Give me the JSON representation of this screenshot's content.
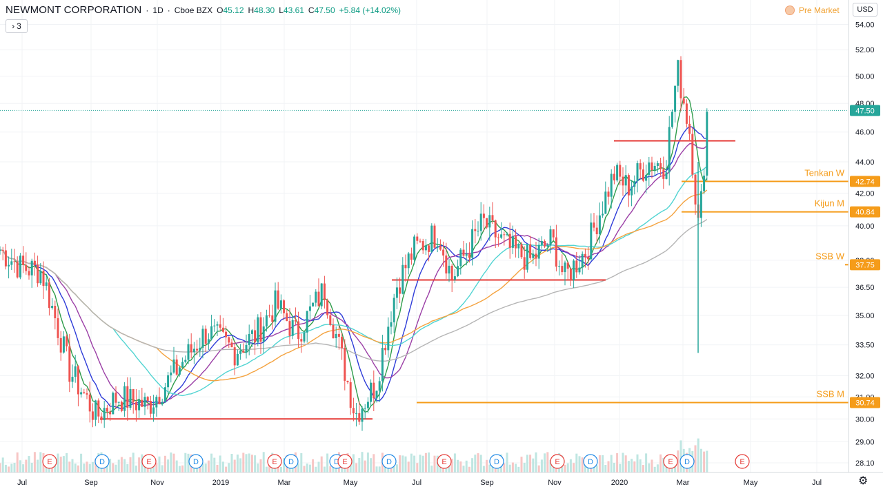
{
  "header": {
    "symbol": "NEWMONT CORPORATION",
    "interval": "1D",
    "exchange": "Cboe BZX",
    "open": "45.12",
    "high": "48.30",
    "low": "43.61",
    "close": "47.50",
    "change": "+5.84 (+14.02%)",
    "o_label": "O",
    "h_label": "H",
    "l_label": "L",
    "c_label": "C",
    "collapse_count": "3",
    "pre_market": "Pre Market",
    "currency": "USD"
  },
  "colors": {
    "up": "#26a69a",
    "down": "#ef5350",
    "red_line": "#e53935",
    "orange": "#f59c1a",
    "green_ma": "#2e9c4a",
    "blue_ma": "#2d3bd8",
    "purple_ma": "#9b3fa6",
    "cyan_ma": "#52d4d2",
    "orange_ma": "#f4a340",
    "gray_ma": "#b5b5b5"
  },
  "chart_data": {
    "type": "candlestick",
    "y_scale": "log",
    "ylim": [
      27.7,
      56.0
    ],
    "y_ticks": [
      "28.10",
      "29.00",
      "30.00",
      "31.00",
      "32.00",
      "33.50",
      "35.00",
      "36.50",
      "38.00",
      "40.00",
      "42.00",
      "44.00",
      "46.00",
      "48.00",
      "50.00",
      "52.00",
      "54.00"
    ],
    "x_ticks": [
      "Jul",
      "Sep",
      "Nov",
      "2019",
      "Mar",
      "May",
      "Jul",
      "Sep",
      "Nov",
      "2020",
      "Mar",
      "May",
      "Jul"
    ],
    "last_price": 47.5,
    "price_labels": [
      {
        "label": "Tenkan W",
        "value": 42.74
      },
      {
        "label": "Kijun M",
        "value": 40.84
      },
      {
        "label": "SSB W",
        "value": 37.75
      },
      {
        "label": "SSB M",
        "value": 30.74
      }
    ],
    "price_label_values": [
      "42.74",
      "40.84",
      "37.75",
      "30.74"
    ],
    "last_price_label": "47.50",
    "support_resistance": [
      {
        "value": 45.4,
        "from": "2019-12",
        "to": "2020-04"
      },
      {
        "value": 36.9,
        "from": "2019-06",
        "to": "2019-12"
      },
      {
        "value": 30.0,
        "from": "2018-09",
        "to": "2019-05"
      }
    ],
    "path_keypoints": [
      {
        "t": 0,
        "p": 38.6
      },
      {
        "t": 30,
        "p": 37.6
      },
      {
        "t": 60,
        "p": 37.4
      },
      {
        "t": 100,
        "p": 32.3
      },
      {
        "t": 140,
        "p": 30.1
      },
      {
        "t": 170,
        "p": 31.0
      },
      {
        "t": 215,
        "p": 30.6
      },
      {
        "t": 240,
        "p": 31.6
      },
      {
        "t": 300,
        "p": 34.2
      },
      {
        "t": 340,
        "p": 33.2
      },
      {
        "t": 370,
        "p": 34.0
      },
      {
        "t": 400,
        "p": 35.6
      },
      {
        "t": 430,
        "p": 34.0
      },
      {
        "t": 470,
        "p": 36.4
      },
      {
        "t": 490,
        "p": 33.6
      },
      {
        "t": 515,
        "p": 30.2
      },
      {
        "t": 545,
        "p": 31.6
      },
      {
        "t": 575,
        "p": 36.6
      },
      {
        "t": 600,
        "p": 38.6
      },
      {
        "t": 635,
        "p": 39.6
      },
      {
        "t": 655,
        "p": 37.0
      },
      {
        "t": 700,
        "p": 40.2
      },
      {
        "t": 740,
        "p": 38.6
      },
      {
        "t": 770,
        "p": 38.0
      },
      {
        "t": 800,
        "p": 39.2
      },
      {
        "t": 818,
        "p": 37.0
      },
      {
        "t": 850,
        "p": 38.6
      },
      {
        "t": 890,
        "p": 43.2
      },
      {
        "t": 910,
        "p": 42.4
      },
      {
        "t": 940,
        "p": 44.0
      },
      {
        "t": 965,
        "p": 43.8
      },
      {
        "t": 982,
        "p": 50.5
      },
      {
        "t": 1000,
        "p": 46.0
      },
      {
        "t": 1012,
        "p": 40.0
      },
      {
        "t": 1018,
        "p": 42.0
      },
      {
        "t": 1025,
        "p": 47.5
      }
    ],
    "volume_events": [
      "E",
      "D",
      "E",
      "D",
      "E",
      "D",
      "D",
      "E",
      "D",
      "E",
      "D",
      "E",
      "D",
      "E",
      "D",
      "E"
    ],
    "ylabel": "",
    "xlabel": ""
  }
}
